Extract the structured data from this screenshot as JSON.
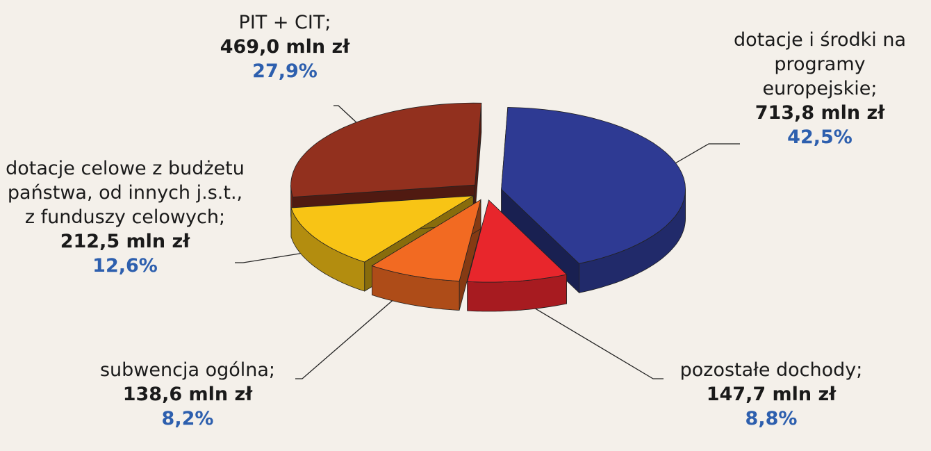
{
  "chart_data": {
    "type": "pie",
    "categories": [
      "dotacje i środki na programy europejskie;",
      "pozostałe dochody;",
      "subwencja ogólna;",
      "dotacje celowe z budżetu państwa, od innych j.s.t., z funduszy celowych;",
      "PIT + CIT;"
    ],
    "values": [
      42.5,
      8.8,
      8.2,
      12.6,
      27.9
    ],
    "value_labels": [
      "42,5%",
      "8,8%",
      "8,2%",
      "12,6%",
      "27,9%"
    ],
    "amounts": [
      713.8,
      147.7,
      138.6,
      212.5,
      469.0
    ],
    "amount_labels": [
      "713,8 mln zł",
      "147,7 mln zł",
      "138,6 mln zł",
      "212,5 mln zł",
      "469,0 mln zł"
    ],
    "colors": [
      "#2e3a93",
      "#e8262c",
      "#f26a22",
      "#f8c415",
      "#92301e"
    ]
  }
}
